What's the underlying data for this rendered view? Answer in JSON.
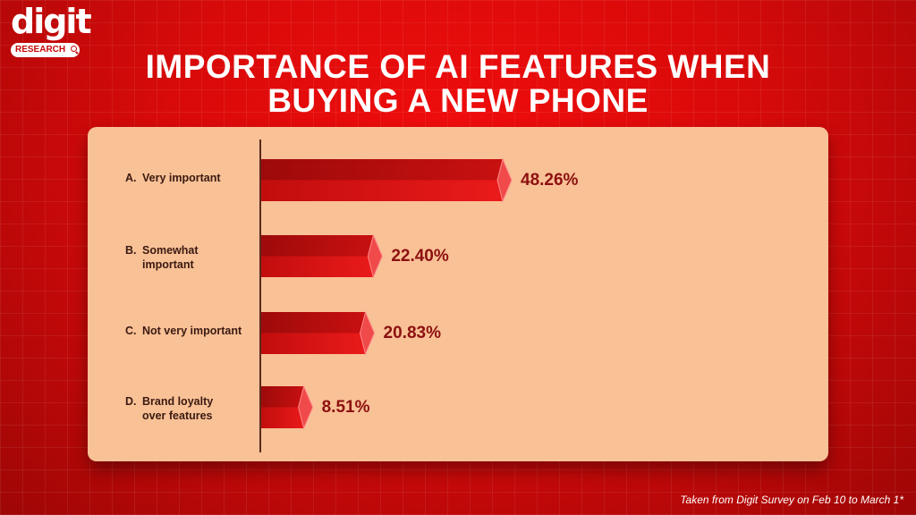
{
  "brand": {
    "logo_text": "digit",
    "logo_sub": "RESEARCH"
  },
  "colors": {
    "background": "#d90a0a",
    "panel": "#f9c196",
    "bar": "#e01414",
    "value_text": "#8c1010"
  },
  "title_line1": "IMPORTANCE OF AI FEATURES WHEN",
  "title_line2": "BUYING A NEW PHONE",
  "footer": "Taken from Digit Survey on Feb 10 to March 1*",
  "chart_data": {
    "type": "bar",
    "orientation": "horizontal",
    "title": "IMPORTANCE OF AI FEATURES WHEN BUYING A NEW PHONE",
    "categories": [
      {
        "letter": "A.",
        "label": "Very important"
      },
      {
        "letter": "B.",
        "label": "Somewhat\nimportant"
      },
      {
        "letter": "C.",
        "label": "Not very important"
      },
      {
        "letter": "D.",
        "label": "Brand loyalty\nover features"
      }
    ],
    "values": [
      48.26,
      22.4,
      20.83,
      8.51
    ],
    "value_labels": [
      "48.26%",
      "22.40%",
      "20.83%",
      "8.51%"
    ],
    "unit": "%",
    "xlim": [
      0,
      48.26
    ],
    "grid": false,
    "legend": "none"
  }
}
